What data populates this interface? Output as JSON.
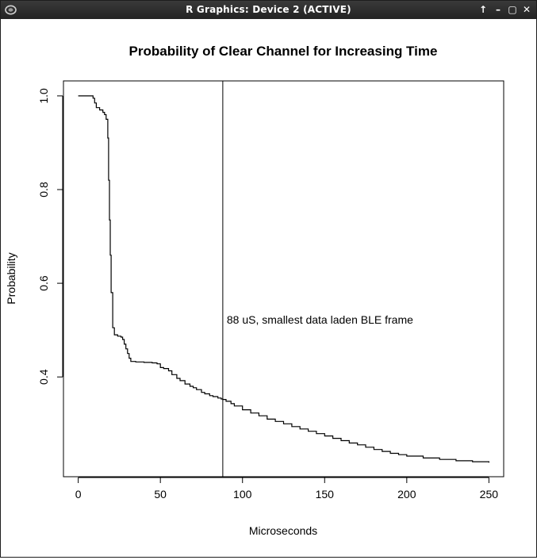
{
  "window": {
    "title": "R Graphics: Device 2 (ACTIVE)",
    "buttons": [
      "↑",
      "–",
      "▢",
      "✕"
    ]
  },
  "chart_data": {
    "type": "line",
    "title": "Probability of Clear Channel for Increasing Time",
    "xlabel": "Microseconds",
    "ylabel": "Probability",
    "xlim": [
      -9,
      259
    ],
    "ylim": [
      0.187,
      1.032
    ],
    "xticks": [
      0,
      50,
      100,
      150,
      200,
      250
    ],
    "xtick_labels": [
      "0",
      "50",
      "100",
      "150",
      "200",
      "250"
    ],
    "yticks": [
      0.4,
      0.6,
      0.8,
      1.0
    ],
    "ytick_labels": [
      "0.4",
      "0.6",
      "0.8",
      "1.0"
    ],
    "grid": false,
    "step": true,
    "series": [
      {
        "x": [
          0,
          9,
          10,
          11,
          13,
          15,
          16,
          17,
          18,
          18.5,
          19,
          19.5,
          20,
          21,
          22,
          24,
          26,
          27,
          28,
          29,
          30,
          31,
          32,
          35,
          40,
          45,
          48,
          50,
          52,
          55,
          57,
          60,
          62,
          65,
          68,
          70,
          72,
          75,
          77,
          80,
          82,
          85,
          87,
          88,
          90,
          93,
          95,
          100,
          105,
          110,
          115,
          120,
          125,
          130,
          135,
          140,
          145,
          150,
          155,
          160,
          165,
          170,
          175,
          180,
          185,
          190,
          195,
          200,
          210,
          220,
          230,
          240,
          250
        ],
        "y": [
          1.0,
          0.995,
          0.985,
          0.975,
          0.97,
          0.965,
          0.96,
          0.95,
          0.91,
          0.82,
          0.735,
          0.66,
          0.58,
          0.505,
          0.49,
          0.487,
          0.485,
          0.48,
          0.47,
          0.46,
          0.45,
          0.44,
          0.433,
          0.432,
          0.431,
          0.43,
          0.428,
          0.42,
          0.418,
          0.413,
          0.405,
          0.397,
          0.392,
          0.385,
          0.38,
          0.377,
          0.373,
          0.367,
          0.364,
          0.36,
          0.358,
          0.355,
          0.353,
          0.352,
          0.348,
          0.343,
          0.338,
          0.33,
          0.323,
          0.317,
          0.31,
          0.305,
          0.3,
          0.294,
          0.289,
          0.284,
          0.279,
          0.274,
          0.269,
          0.264,
          0.259,
          0.255,
          0.25,
          0.245,
          0.241,
          0.237,
          0.234,
          0.231,
          0.227,
          0.224,
          0.221,
          0.219,
          0.217
        ]
      }
    ],
    "vline": {
      "x": 88,
      "label": "88 uS, smallest data laden BLE frame",
      "label_y": 0.5
    }
  }
}
